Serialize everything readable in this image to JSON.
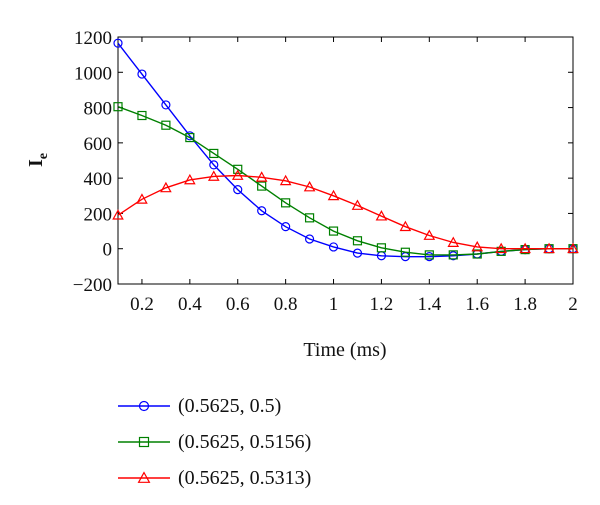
{
  "chart_data": {
    "type": "line",
    "xlabel": "Time (ms)",
    "ylabel": "I",
    "ylabel_sub": "e",
    "xlim": [
      0.1,
      2
    ],
    "ylim": [
      -200,
      1200
    ],
    "xticks": [
      0.2,
      0.4,
      0.6,
      0.8,
      1,
      1.2,
      1.4,
      1.6,
      1.8,
      2
    ],
    "xtick_labels": [
      "0.2",
      "0.4",
      "0.6",
      "0.8",
      "1",
      "1.2",
      "1.4",
      "1.6",
      "1.8",
      "2"
    ],
    "yticks": [
      -200,
      0,
      200,
      400,
      600,
      800,
      1000,
      1200
    ],
    "ytick_labels": [
      "−200",
      "0",
      "200",
      "400",
      "600",
      "800",
      "1000",
      "1200"
    ],
    "grid": false,
    "legend_position": "below",
    "series": [
      {
        "name": "(0.5625, 0.5)",
        "color": "#0000ff",
        "marker": "circle",
        "x": [
          0.1,
          0.2,
          0.3,
          0.4,
          0.5,
          0.6,
          0.7,
          0.8,
          0.9,
          1.0,
          1.1,
          1.2,
          1.3,
          1.4,
          1.5,
          1.6,
          1.7,
          1.8,
          1.9,
          2.0
        ],
        "y": [
          1165,
          990,
          815,
          640,
          475,
          335,
          215,
          125,
          55,
          10,
          -25,
          -40,
          -45,
          -45,
          -40,
          -30,
          -15,
          -5,
          0,
          0
        ]
      },
      {
        "name": "(0.5625, 0.5156)",
        "color": "#008000",
        "marker": "square",
        "x": [
          0.1,
          0.2,
          0.3,
          0.4,
          0.5,
          0.6,
          0.7,
          0.8,
          0.9,
          1.0,
          1.1,
          1.2,
          1.3,
          1.4,
          1.5,
          1.6,
          1.7,
          1.8,
          1.9,
          2.0
        ],
        "y": [
          805,
          755,
          700,
          630,
          540,
          450,
          355,
          260,
          175,
          100,
          45,
          5,
          -20,
          -35,
          -35,
          -30,
          -15,
          -5,
          0,
          0
        ]
      },
      {
        "name": "(0.5625, 0.5313)",
        "color": "#ff0000",
        "marker": "triangle",
        "x": [
          0.1,
          0.2,
          0.3,
          0.4,
          0.5,
          0.6,
          0.7,
          0.8,
          0.9,
          1.0,
          1.1,
          1.2,
          1.3,
          1.4,
          1.5,
          1.6,
          1.7,
          1.8,
          1.9,
          2.0
        ],
        "y": [
          190,
          280,
          345,
          390,
          410,
          415,
          405,
          385,
          350,
          300,
          245,
          185,
          125,
          75,
          35,
          10,
          0,
          0,
          0,
          0
        ]
      }
    ]
  }
}
